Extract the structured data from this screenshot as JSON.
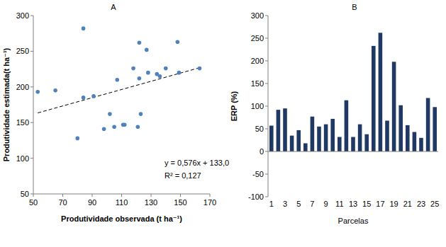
{
  "chart_data": [
    {
      "type": "scatter",
      "title": "A",
      "x_label": "Produtividade observada (t ha⁻¹)",
      "y_label": "Produtividade estimada(t ha⁻¹)",
      "x": [
        53,
        65,
        80,
        84,
        84,
        91,
        98,
        102,
        105,
        107,
        111,
        112,
        118,
        122,
        122,
        121,
        123,
        127,
        128,
        134,
        136,
        140,
        148,
        149,
        163
      ],
      "values": [
        193,
        195,
        128,
        282,
        185,
        187,
        141,
        162,
        144,
        210,
        147,
        147,
        226,
        262,
        212,
        144,
        162,
        252,
        220,
        218,
        215,
        226,
        263,
        220,
        226
      ],
      "color": "#4f81bd",
      "marker": "circle",
      "xlim": [
        50,
        170
      ],
      "xticks": [
        50,
        70,
        90,
        110,
        130,
        150,
        170
      ],
      "ylim": [
        50,
        300
      ],
      "yticks": [
        50,
        100,
        150,
        200,
        250,
        300
      ],
      "grid": false,
      "trendline": {
        "slope": 0.576,
        "intercept": 133.0,
        "line_style": "dashed",
        "equation": "y = 0,576x + 133,0",
        "r2": "R² = 0,127"
      }
    },
    {
      "type": "bar",
      "title": "B",
      "x_label": "Parcelas",
      "y_label": "ERP (%)",
      "categories": [
        "1",
        null,
        "3",
        null,
        "5",
        null,
        "7",
        null,
        "9",
        null,
        "11",
        null,
        "13",
        null,
        "15",
        null,
        "17",
        null,
        "19",
        null,
        "21",
        null,
        "23",
        null,
        "25"
      ],
      "values": [
        57,
        92,
        95,
        35,
        47,
        18,
        77,
        55,
        60,
        72,
        32,
        113,
        32,
        60,
        38,
        233,
        262,
        68,
        198,
        102,
        58,
        43,
        30,
        118,
        98
      ],
      "color": "#1f3864",
      "ylim": [
        -100,
        300
      ],
      "yticks": [
        -100,
        -50,
        0,
        50,
        100,
        150,
        200,
        250,
        300
      ],
      "grid": false
    }
  ]
}
